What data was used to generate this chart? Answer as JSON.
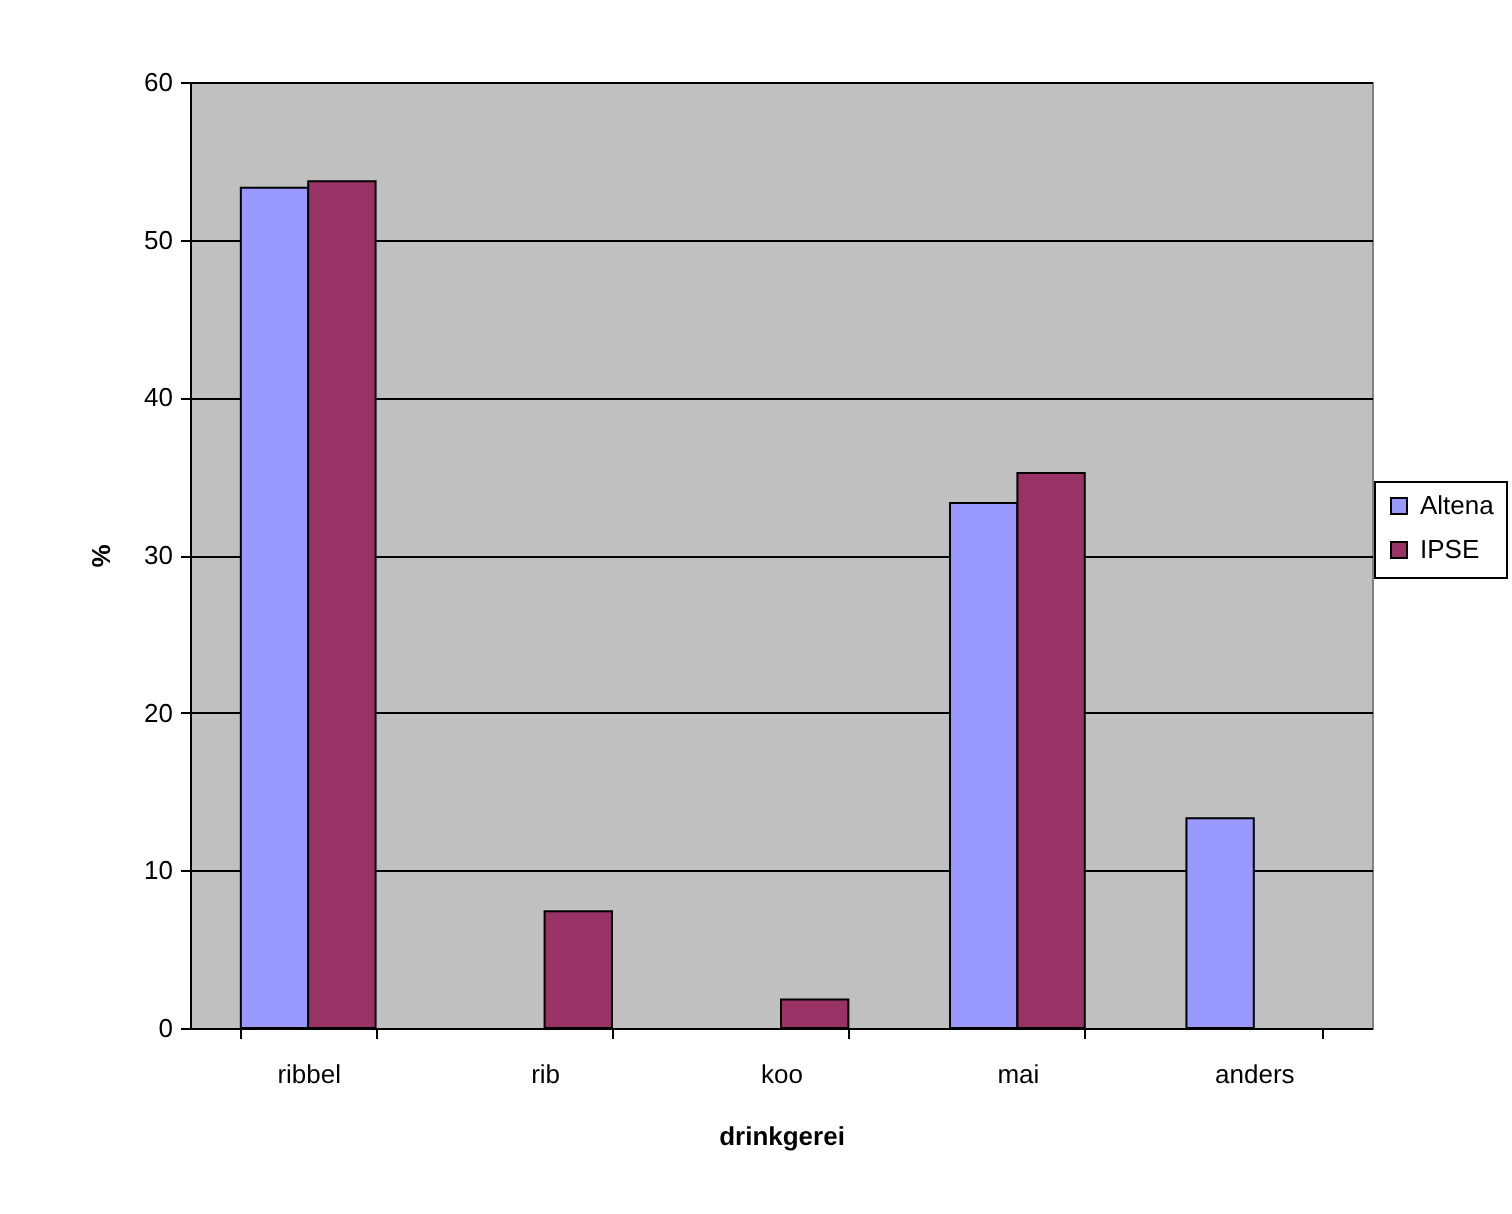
{
  "chart_data": {
    "type": "bar",
    "categories": [
      "ribbel",
      "rib",
      "koo",
      "mai",
      "anders"
    ],
    "series": [
      {
        "name": "Altena",
        "color": "#9999ff",
        "values": [
          53.3,
          null,
          null,
          33.3,
          13.3
        ]
      },
      {
        "name": "IPSE",
        "color": "#993366",
        "values": [
          53.7,
          7.4,
          1.8,
          35.2,
          null
        ]
      }
    ],
    "xlabel": "drinkgerei",
    "ylabel": "%",
    "ylim": [
      0,
      60
    ],
    "yticks": [
      0,
      10,
      20,
      30,
      40,
      50,
      60
    ],
    "grid": "y",
    "legend": "right"
  }
}
